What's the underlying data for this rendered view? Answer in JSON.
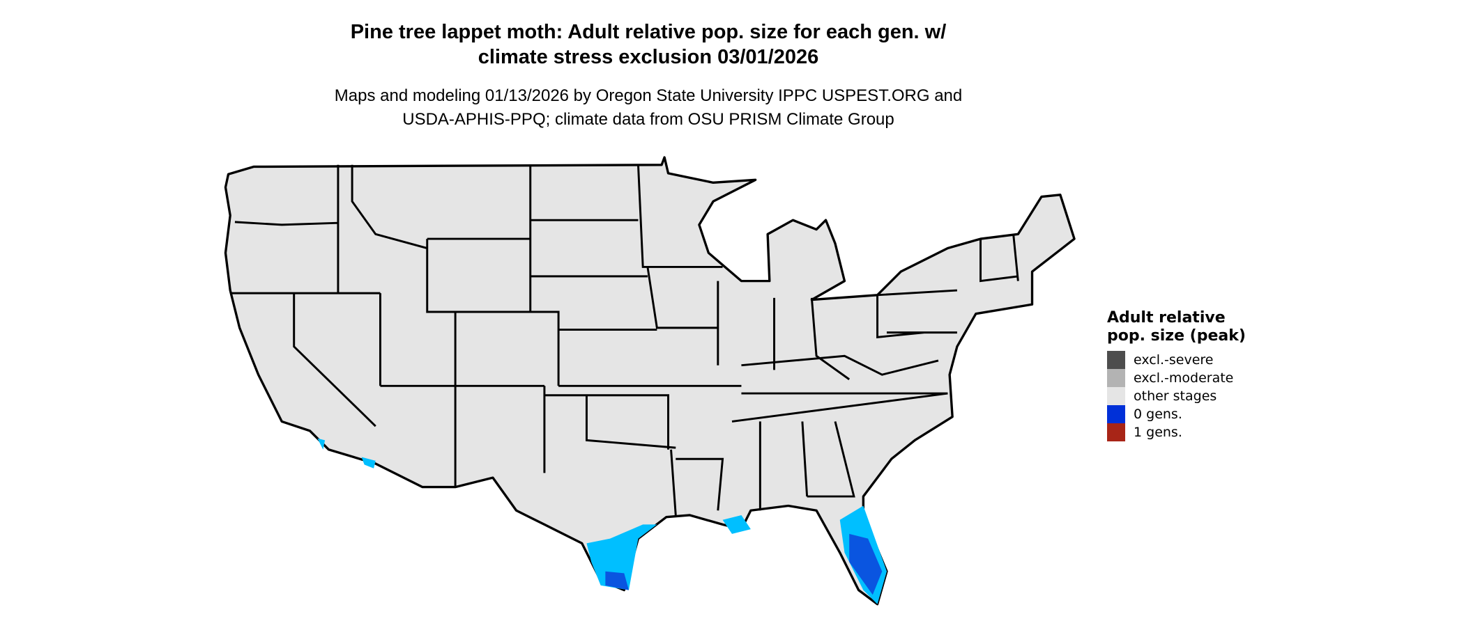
{
  "title_line1": "Pine tree lappet moth: Adult relative pop. size for each gen. w/",
  "title_line2": "climate stress exclusion 03/01/2026",
  "subtitle_line1": "Maps and modeling 01/13/2026 by Oregon State University IPPC USPEST.ORG and",
  "subtitle_line2": "USDA-APHIS-PPQ; climate data from OSU PRISM Climate Group",
  "legend": {
    "title": "Adult relative pop. size (peak)",
    "items": [
      {
        "label": "excl.-severe",
        "color": "#4d4d4d"
      },
      {
        "label": "excl.-moderate",
        "color": "#b3b3b3"
      },
      {
        "label": "other stages",
        "color": "#e5e5e5"
      },
      {
        "label": "0 gens.",
        "color": "#0030d8"
      },
      {
        "label": "1 gens.",
        "color": "#a82517"
      }
    ]
  },
  "colors": {
    "land": "#e5e5e5",
    "light_blue": "#00bfff",
    "dark_blue": "#0a55e0"
  }
}
